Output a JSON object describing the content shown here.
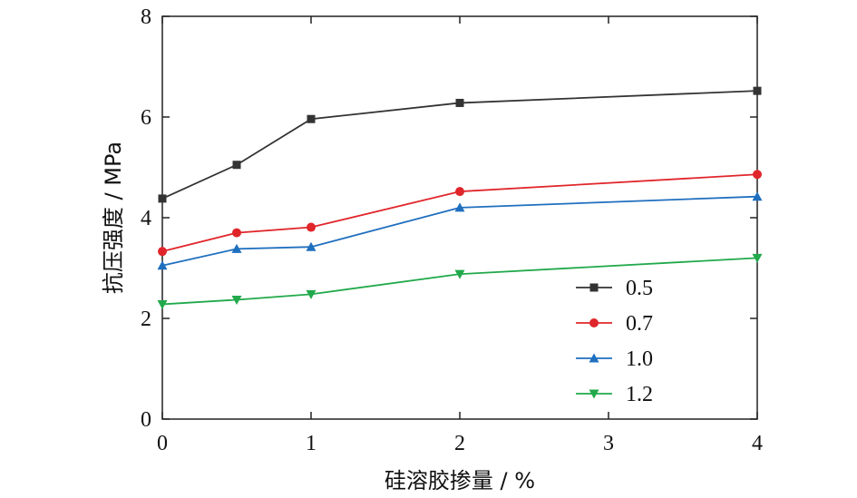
{
  "chart_data": {
    "type": "line",
    "title": "",
    "xlabel": "硅溶胶掺量 / %",
    "ylabel": "抗压强度 / MPa",
    "xlim": [
      0,
      4
    ],
    "ylim": [
      0,
      8
    ],
    "xticks": [
      0,
      1,
      2,
      3,
      4
    ],
    "yticks": [
      0,
      2,
      4,
      6,
      8
    ],
    "grid": false,
    "legend_position": "bottom-right",
    "series": [
      {
        "name": "0.5",
        "color": "#333333",
        "marker": "square",
        "x": [
          0,
          0.5,
          1,
          2,
          4
        ],
        "y": [
          4.38,
          5.05,
          5.96,
          6.28,
          6.52
        ]
      },
      {
        "name": "0.7",
        "color": "#e0262b",
        "marker": "circle",
        "x": [
          0,
          0.5,
          1,
          2,
          4
        ],
        "y": [
          3.33,
          3.7,
          3.81,
          4.52,
          4.86
        ]
      },
      {
        "name": "1.0",
        "color": "#1f6fbf",
        "marker": "triangle-up",
        "x": [
          0,
          0.5,
          1,
          2,
          4
        ],
        "y": [
          3.05,
          3.38,
          3.42,
          4.2,
          4.42
        ]
      },
      {
        "name": "1.2",
        "color": "#21a94b",
        "marker": "triangle-down",
        "x": [
          0,
          0.5,
          1,
          2,
          4
        ],
        "y": [
          2.28,
          2.37,
          2.48,
          2.88,
          3.2
        ]
      }
    ]
  }
}
